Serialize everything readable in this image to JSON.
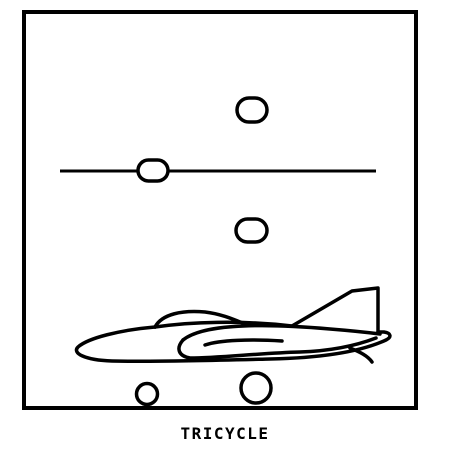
{
  "caption": "TRICYCLE",
  "colors": {
    "ink": "#000000",
    "paper": "#ffffff"
  },
  "icons": {
    "aircraft": "jet-aircraft-side-view-icon",
    "landing_marker": "oval-marker-icon",
    "wheel": "wheel-icon"
  }
}
